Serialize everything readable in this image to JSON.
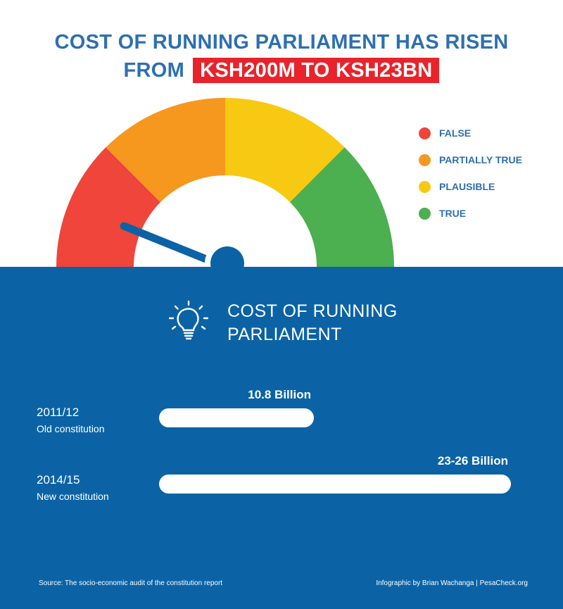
{
  "headline": {
    "line1": "COST OF RUNNING PARLIAMENT HAS RISEN",
    "prefix": "FROM",
    "highlight": "KSH200M TO KSH23BN"
  },
  "gauge": {
    "segments": [
      {
        "label": "FALSE",
        "color": "#ef453a"
      },
      {
        "label": "PARTIALLY TRUE",
        "color": "#f6981e"
      },
      {
        "label": "PLAUSIBLE",
        "color": "#f7c912"
      },
      {
        "label": "TRUE",
        "color": "#4caf50"
      }
    ],
    "needle_color": "#0b63a6"
  },
  "section": {
    "icon": "lightbulb-icon",
    "title": "COST OF RUNNING\nPARLIAMENT"
  },
  "chart_data": {
    "type": "bar",
    "orientation": "horizontal",
    "categories": [
      "2011/12",
      "2014/15"
    ],
    "category_notes": [
      "Old constitution",
      "New constitution"
    ],
    "values": [
      10.8,
      24.5
    ],
    "value_labels": [
      "10.8 Billion",
      "23-26 Billion"
    ],
    "title": "COST OF RUNNING PARLIAMENT",
    "xlim": [
      0,
      24.5
    ],
    "bar_color": "#ffffff"
  },
  "footer": {
    "source": "Source: The socio-economic audit of the constitution report",
    "credit": "Infographic by Brian Wachanga | PesaCheck.org"
  }
}
